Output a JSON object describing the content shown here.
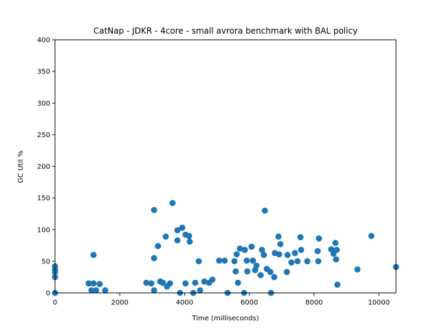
{
  "chart_data": {
    "type": "scatter",
    "title": "CatNap - JDKR - 4core -  small avrora benchmark with BAL policy",
    "x_label": "Time (milliseconds)",
    "y_label": "GC Util %",
    "color": "#1f77b4",
    "xlim": [
      0,
      10530
    ],
    "ylim": [
      0,
      400
    ],
    "xticks": [
      0,
      2000,
      4000,
      6000,
      8000,
      10000
    ],
    "yticks": [
      0,
      50,
      100,
      150,
      200,
      250,
      300,
      350,
      400
    ],
    "x": [
      0,
      0,
      0,
      0,
      0,
      1040,
      1190,
      1190,
      1125,
      1270,
      1380,
      1550,
      2820,
      2970,
      3060,
      3060,
      3060,
      3180,
      3250,
      3330,
      3420,
      3460,
      3550,
      3630,
      3780,
      3780,
      3930,
      3860,
      4030,
      4030,
      4160,
      4140,
      4270,
      4440,
      4330,
      4480,
      4610,
      4760,
      4860,
      5070,
      5240,
      5330,
      5540,
      5610,
      5710,
      5650,
      5580,
      5860,
      5920,
      5840,
      5940,
      6070,
      6110,
      6180,
      6220,
      6350,
      6390,
      6450,
      6480,
      6540,
      6670,
      6650,
      6770,
      6790,
      6900,
      6960,
      6920,
      7160,
      7180,
      7300,
      7410,
      7490,
      7580,
      7600,
      7790,
      8110,
      8130,
      8150,
      8530,
      8660,
      8680,
      8600,
      8720,
      8700,
      9340,
      9770,
      10530
    ],
    "values": [
      42,
      33,
      25,
      37,
      0,
      15,
      15,
      60,
      4,
      4,
      14,
      4,
      16,
      15,
      55,
      131,
      4,
      74,
      18,
      16,
      89,
      10,
      15,
      142,
      99,
      83,
      103,
      0,
      92,
      15,
      81,
      90,
      0,
      50,
      16,
      4,
      18,
      16,
      21,
      51,
      51,
      0,
      50,
      61,
      70,
      16,
      34,
      68,
      51,
      0,
      34,
      73,
      51,
      36,
      43,
      28,
      68,
      60,
      130,
      38,
      0,
      33,
      25,
      63,
      89,
      77,
      61,
      33,
      60,
      48,
      63,
      50,
      88,
      68,
      50,
      66,
      50,
      86,
      69,
      79,
      53,
      62,
      13,
      68,
      37,
      90,
      41
    ]
  }
}
